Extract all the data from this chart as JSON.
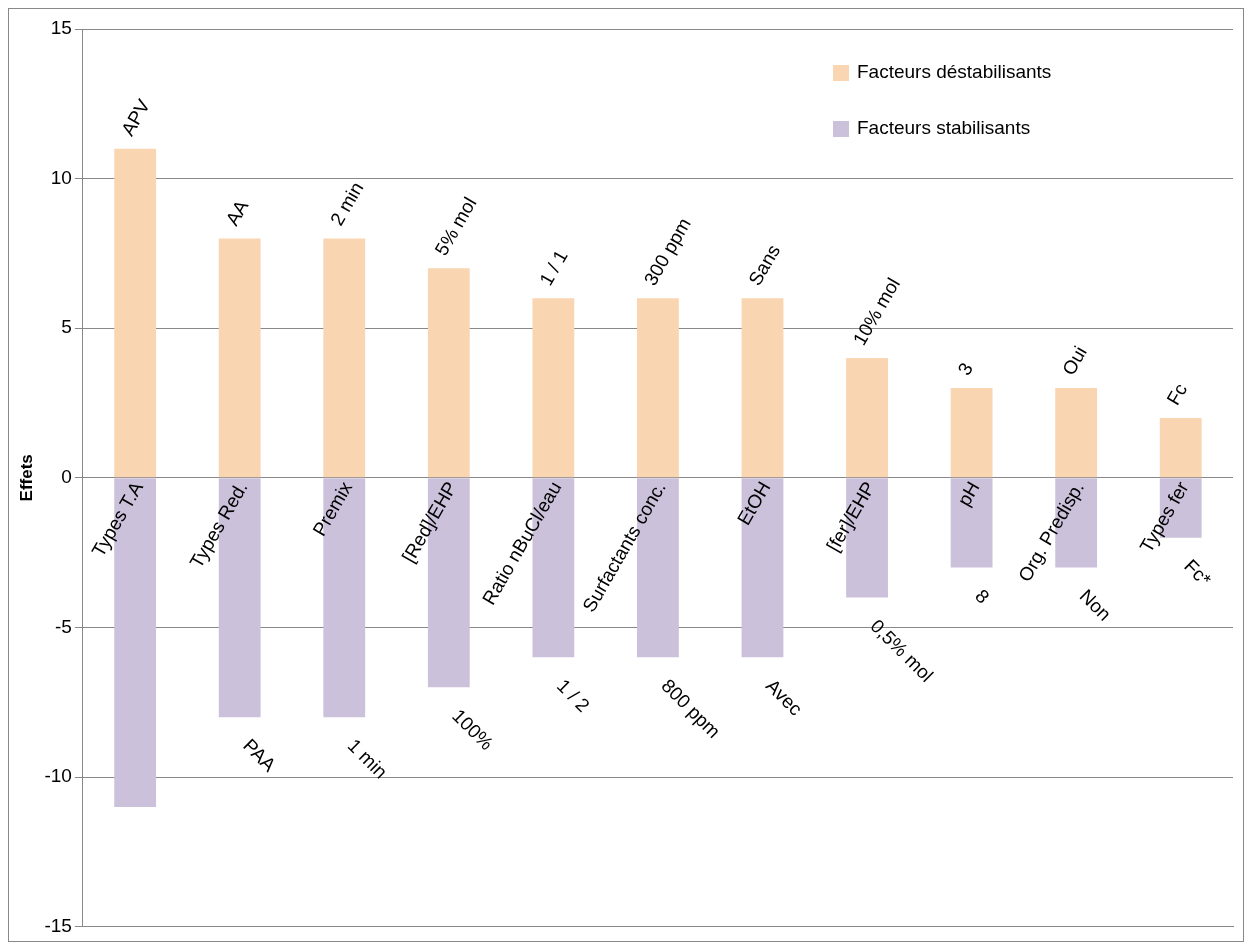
{
  "chart_data": {
    "type": "bar",
    "ylabel": "Effets",
    "stacked": true,
    "legend": "top right",
    "grid": "y",
    "categories": [
      "Types T.A",
      "Types Red.",
      "Premix",
      "[Red]/EHP",
      "Ratio nBuCl/eau",
      "Surfactants conc.",
      "EtOH",
      "[fer]/EHP",
      "pH",
      "Org. Predisp.",
      "Types fer"
    ],
    "ylim": [
      -15,
      15
    ],
    "yticks": [
      -15,
      -10,
      -5,
      0,
      5,
      10,
      15
    ],
    "series": [
      {
        "name": "Facteurs déstabilisants",
        "color": "#fad5b2",
        "values": [
          11,
          8,
          8,
          7,
          6,
          6,
          6,
          4,
          3,
          3,
          2
        ]
      },
      {
        "name": "Facteurs stabilisants",
        "color": "#ccc1da",
        "values": [
          -11,
          -8,
          -8,
          -7,
          -6,
          -6,
          -6,
          -4,
          -3,
          -3,
          -2
        ]
      }
    ],
    "annotations": [
      {
        "text": "APV",
        "x": "Types T.A",
        "y": 11
      },
      {
        "text": "AA",
        "x": "Types Red.",
        "y": 8
      },
      {
        "text": "2 min",
        "x": "Premix",
        "y": 8
      },
      {
        "text": "5% mol",
        "x": "[Red]/EHP",
        "y": 7
      },
      {
        "text": "1 / 1",
        "x": "Ratio nBuCl/eau",
        "y": 6
      },
      {
        "text": "300 ppm",
        "x": "Surfactants conc.",
        "y": 6
      },
      {
        "text": "Sans",
        "x": "EtOH",
        "y": 6
      },
      {
        "text": "10% mol",
        "x": "[fer]/EHP",
        "y": 4
      },
      {
        "text": "3",
        "x": "pH",
        "y": 3
      },
      {
        "text": "Oui",
        "x": "Org. Predisp.",
        "y": 3
      },
      {
        "text": "Fc",
        "x": "Types fer",
        "y": 2
      },
      {
        "text": "PAA",
        "x": "Types Red.",
        "y": -8
      },
      {
        "text": "1 min",
        "x": "Premix",
        "y": -8
      },
      {
        "text": "100%",
        "x": "[Red]/EHP",
        "y": -7
      },
      {
        "text": "1 / 2",
        "x": "Ratio nBuCl/eau",
        "y": -6
      },
      {
        "text": "800 ppm",
        "x": "Surfactants conc.",
        "y": -6
      },
      {
        "text": "Avec",
        "x": "EtOH",
        "y": -6
      },
      {
        "text": "0,5% mol",
        "x": "[fer]/EHP",
        "y": -4
      },
      {
        "text": "8",
        "x": "pH",
        "y": -3
      },
      {
        "text": "Non",
        "x": "Org. Predisp.",
        "y": -3
      },
      {
        "text": "Fc*",
        "x": "Types fer",
        "y": -2
      }
    ]
  }
}
